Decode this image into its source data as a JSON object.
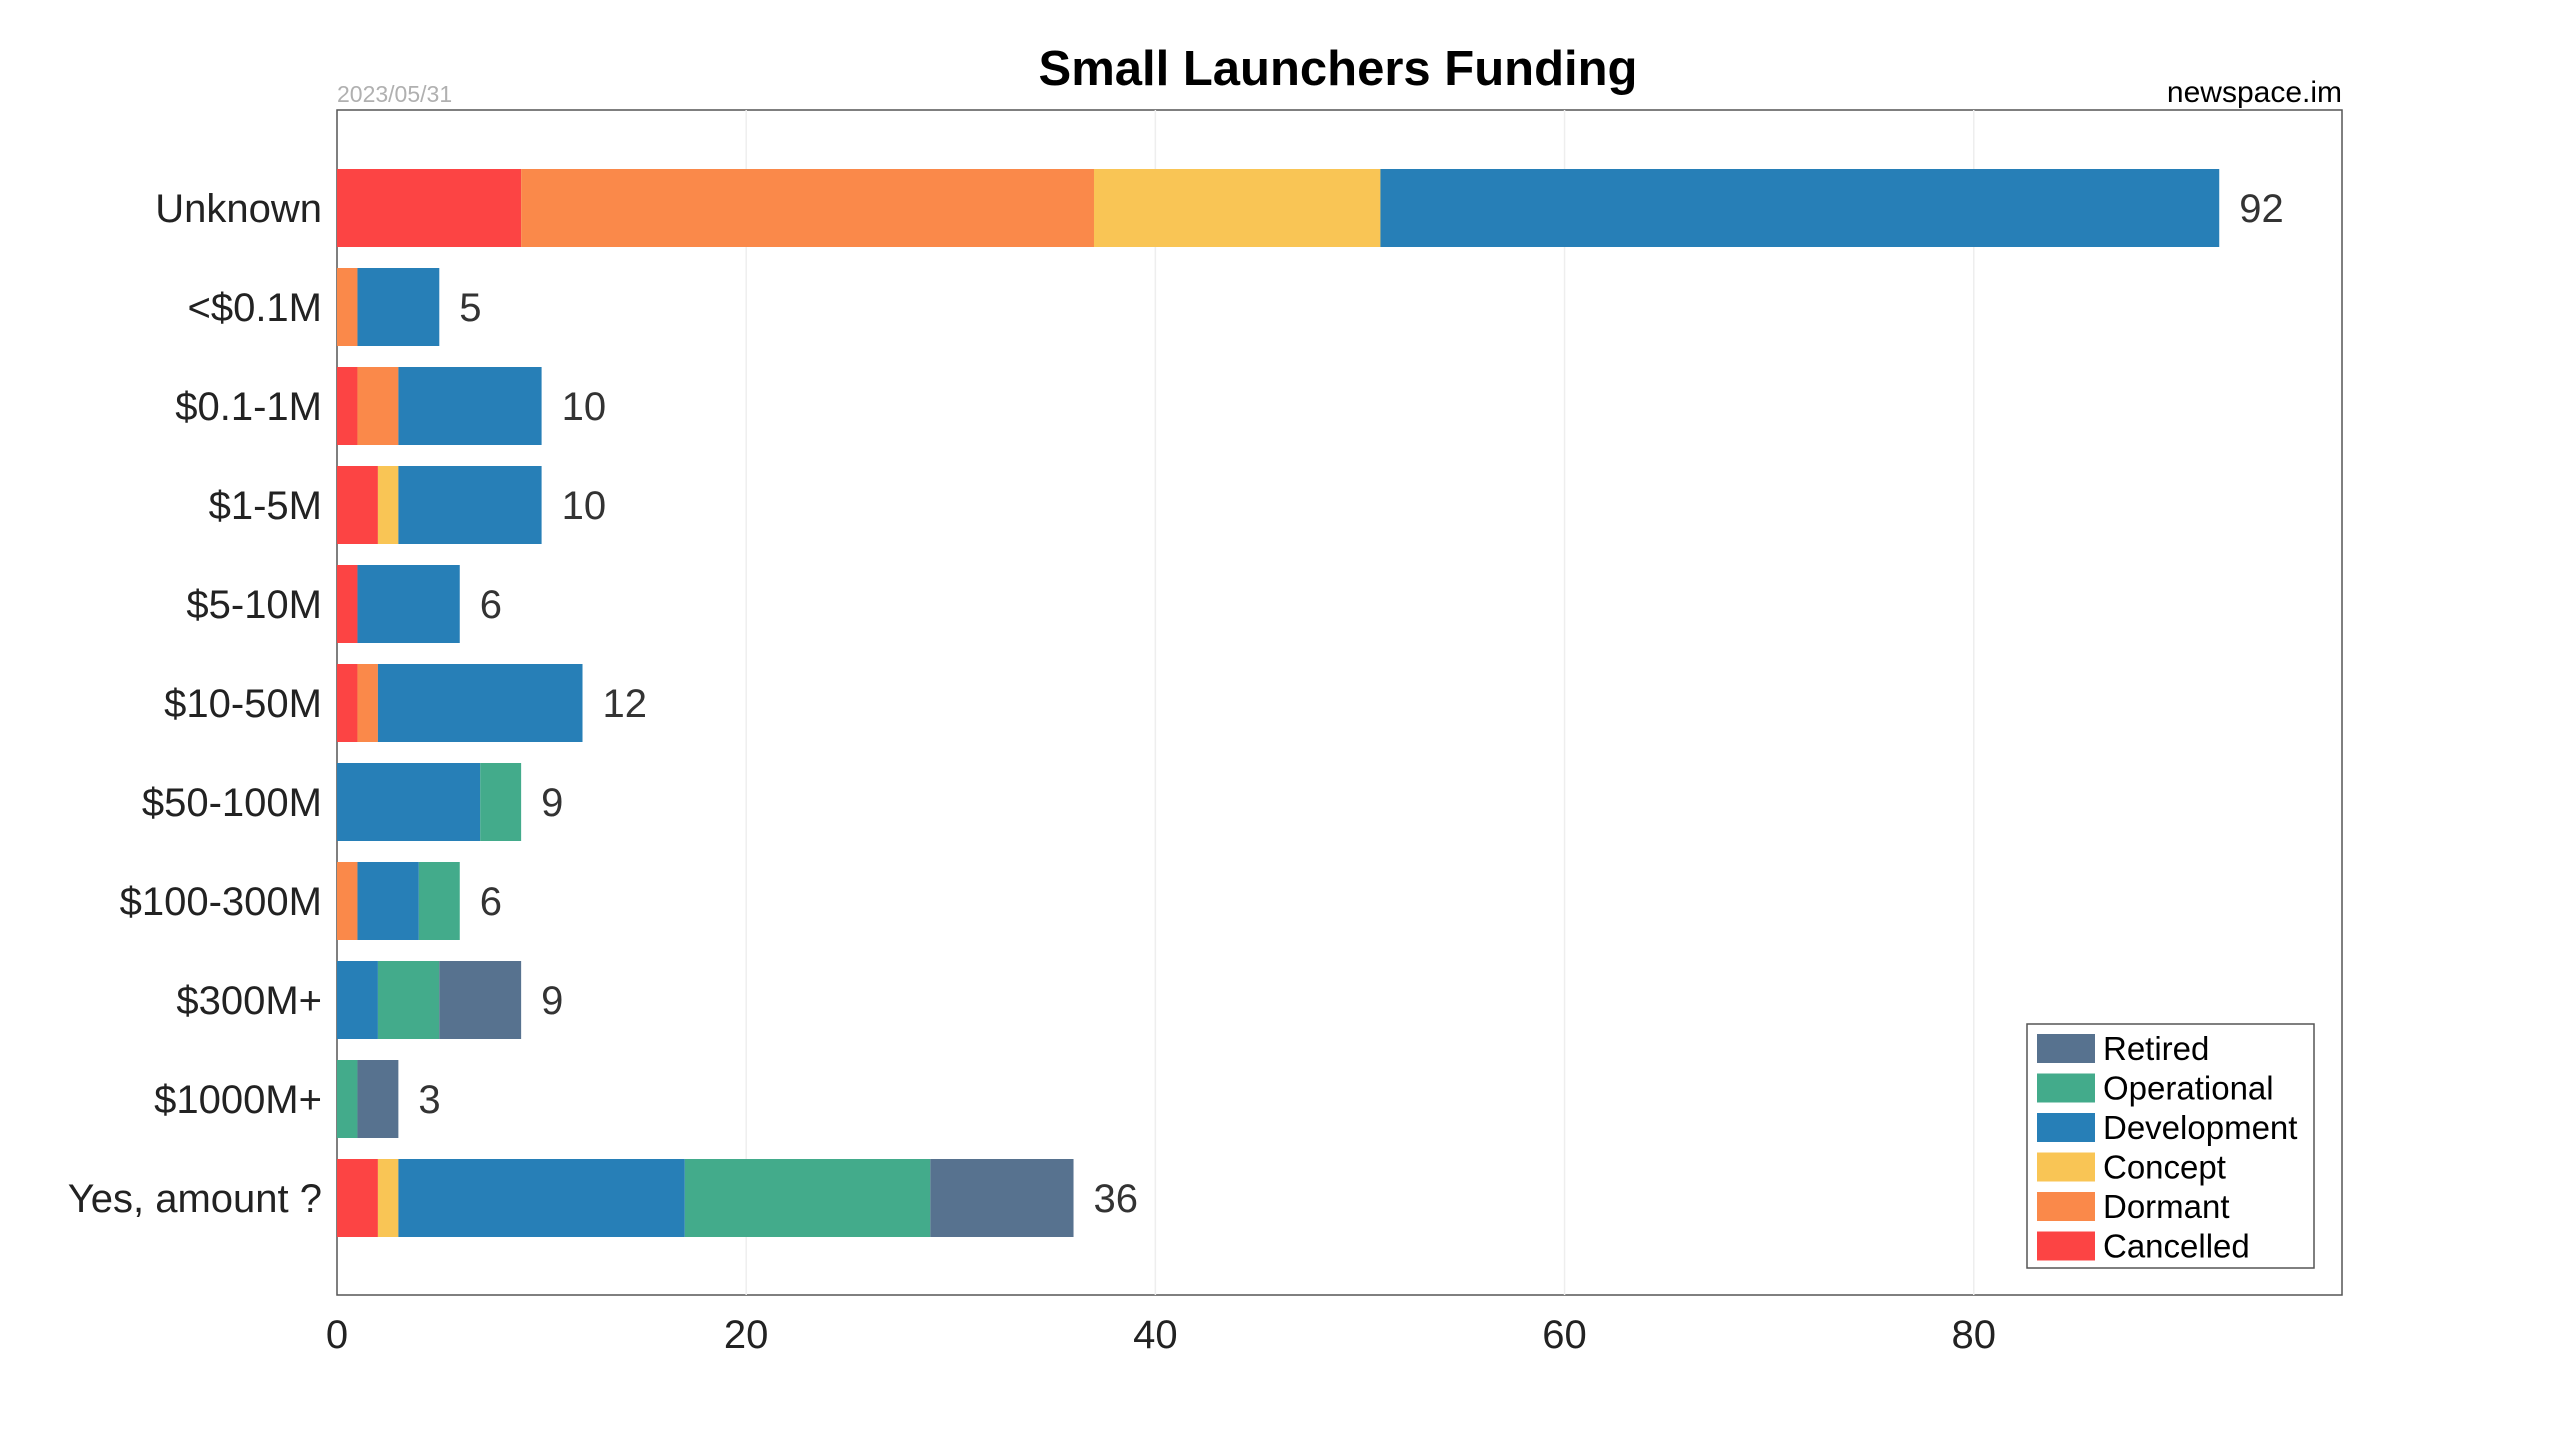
{
  "chart_data": {
    "type": "bar",
    "orientation": "horizontal",
    "stacked": true,
    "title": "Small Launchers Funding",
    "date": "2023/05/31",
    "source": "newspace.im",
    "xlabel": "",
    "ylabel": "",
    "xlim": [
      0,
      98
    ],
    "xticks": [
      0,
      20,
      40,
      60,
      80
    ],
    "grid": "vertical",
    "legend_position": "bottom-right",
    "categories": [
      "Unknown",
      "<$0.1M",
      "$0.1-1M",
      "$1-5M",
      "$5-10M",
      "$10-50M",
      "$50-100M",
      "$100-300M",
      "$300M+",
      "$1000M+",
      "Yes, amount ?"
    ],
    "totals": [
      "92",
      "5",
      "10",
      "10",
      "6",
      "12",
      "9",
      "6",
      "9",
      "3",
      "36"
    ],
    "series": [
      {
        "name": "Cancelled",
        "color": "#fc4444",
        "values": [
          9,
          0,
          1,
          2,
          1,
          1,
          0,
          0,
          0,
          0,
          2
        ]
      },
      {
        "name": "Dormant",
        "color": "#fa894a",
        "values": [
          28,
          1,
          2,
          0,
          0,
          1,
          0,
          1,
          0,
          0,
          0
        ]
      },
      {
        "name": "Concept",
        "color": "#f9c555",
        "values": [
          14,
          0,
          0,
          1,
          0,
          0,
          0,
          0,
          0,
          0,
          1
        ]
      },
      {
        "name": "Development",
        "color": "#277fb7",
        "values": [
          41,
          4,
          7,
          7,
          5,
          10,
          7,
          3,
          2,
          0,
          14
        ]
      },
      {
        "name": "Operational",
        "color": "#43ab8b",
        "values": [
          0,
          0,
          0,
          0,
          0,
          0,
          2,
          2,
          3,
          1,
          12
        ]
      },
      {
        "name": "Retired",
        "color": "#57728f",
        "values": [
          0,
          0,
          0,
          0,
          0,
          0,
          0,
          0,
          4,
          2,
          7
        ]
      }
    ]
  }
}
